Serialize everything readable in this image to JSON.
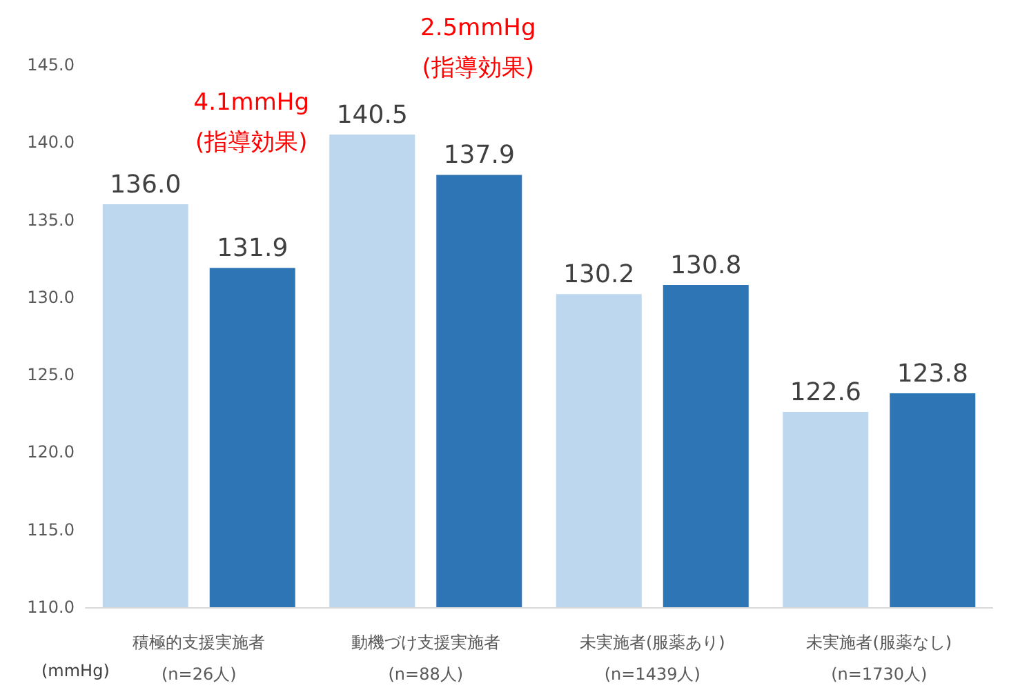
{
  "chart_data": {
    "type": "bar",
    "categories": [
      "積極的支援実施者\n(n=26人)",
      "動機づけ支援実施者\n(n=88人)",
      "未実施者(服薬あり)\n(n=1439人)",
      "未実施者(服薬なし)\n(n=1730人)"
    ],
    "series": [
      {
        "color": "#bdd7ee",
        "values": [
          136.0,
          140.5,
          130.2,
          122.6
        ],
        "value_labels": [
          "136.0",
          "140.5",
          "130.2",
          "122.6"
        ]
      },
      {
        "color": "#2e75b6",
        "values": [
          131.9,
          137.9,
          130.8,
          123.8
        ],
        "value_labels": [
          "131.9",
          "137.9",
          "130.8",
          "123.8"
        ]
      }
    ],
    "ylabel": "(mmHg)",
    "ylim": [
      110,
      145
    ],
    "yticks": [
      {
        "value": 110,
        "label": "110.0"
      },
      {
        "value": 115,
        "label": "115.0"
      },
      {
        "value": 120,
        "label": "120.0"
      },
      {
        "value": 125,
        "label": "125.0"
      },
      {
        "value": 130,
        "label": "130.0"
      },
      {
        "value": 135,
        "label": "135.0"
      },
      {
        "value": 140,
        "label": "140.0"
      },
      {
        "value": 145,
        "label": "145.0"
      }
    ],
    "annotations": [
      "4.1mmHg\n(指導効果)",
      "2.5mmHg\n(指導効果)"
    ],
    "grid": false
  }
}
